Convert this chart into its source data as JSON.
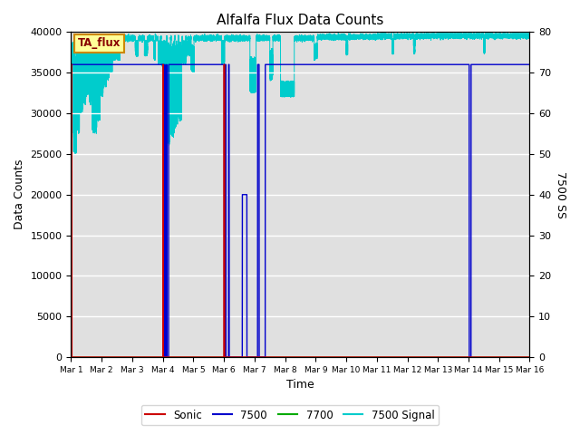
{
  "title": "Alfalfa Flux Data Counts",
  "xlabel": "Time",
  "ylabel_left": "Data Counts",
  "ylabel_right": "7500 SS",
  "ylim_left": [
    0,
    40000
  ],
  "ylim_right": [
    0,
    80
  ],
  "xtick_labels": [
    "Mar 1",
    "Mar 2",
    "Mar 3",
    "Mar 4",
    "Mar 5",
    "Mar 6",
    "Mar 7",
    "Mar 8",
    "Mar 9",
    "Mar 10",
    "Mar 11",
    "Mar 12",
    "Mar 13",
    "Mar 14",
    "Mar 15",
    "Mar 16"
  ],
  "bg_color": "#e0e0e0",
  "sonic_color": "#cc0000",
  "c7500_color": "#0000cc",
  "c7700_color": "#00aa00",
  "signal_color": "#00cccc",
  "annotation_text": "TA_flux",
  "annotation_bg": "#ffff99",
  "annotation_border": "#cc8800",
  "legend_labels": [
    "Sonic",
    "7500",
    "7700",
    "7500 Signal"
  ]
}
